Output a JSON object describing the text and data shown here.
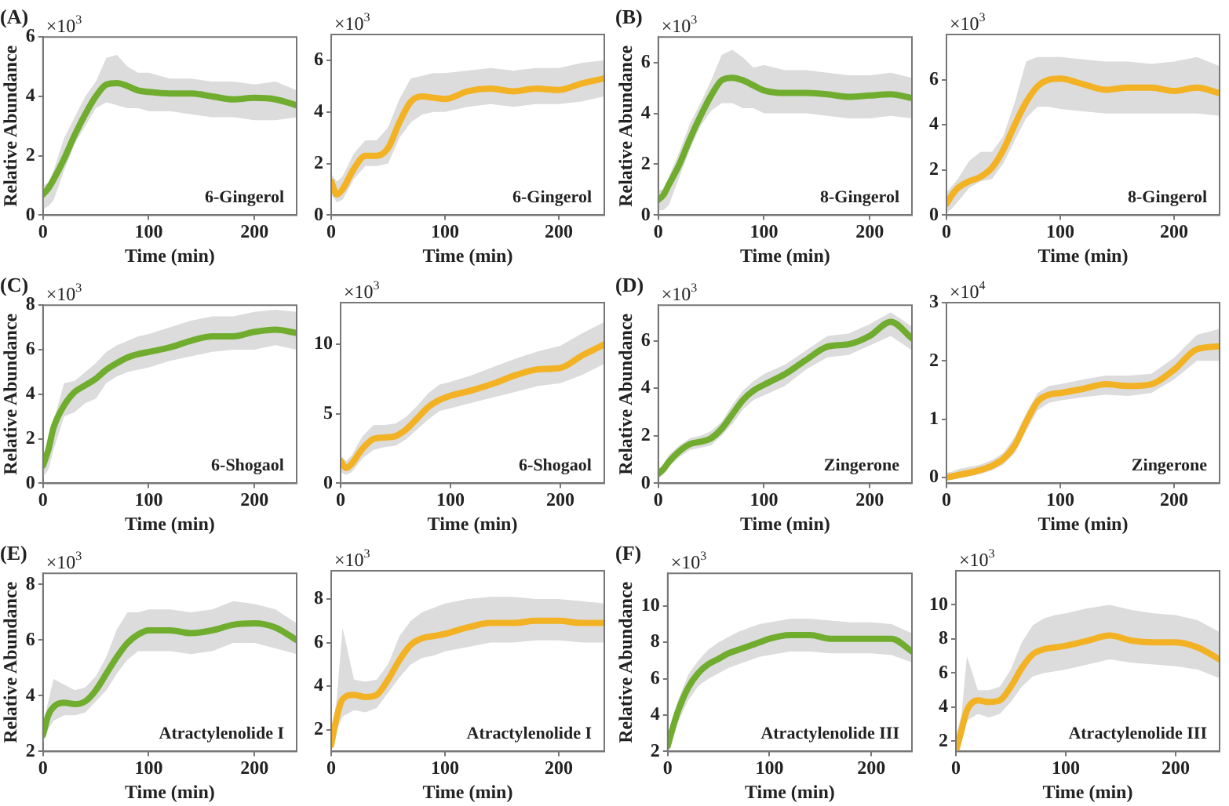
{
  "chart_data": [
    {
      "type": "line",
      "title": "(A)",
      "ylabel": "Relative Abundance",
      "xlabel": "Time (min)",
      "annotations": [
        "×10$^{3}$",
        "6-Gingerol"
      ],
      "x": [
        0,
        5,
        10,
        20,
        30,
        40,
        50,
        60,
        70,
        80,
        90,
        100,
        120,
        140,
        160,
        180,
        200,
        220,
        240
      ],
      "xlim": [
        0,
        240
      ],
      "xticks": [
        0,
        100,
        200
      ],
      "ylim": [
        0,
        6
      ],
      "yticks": [
        0,
        2,
        4,
        6
      ],
      "series": [
        {
          "color": "#70ad2f",
          "values": [
            0.7,
            0.9,
            1.2,
            1.9,
            2.7,
            3.4,
            4.0,
            4.4,
            4.45,
            4.35,
            4.2,
            4.15,
            4.1,
            4.1,
            4.0,
            3.9,
            3.95,
            3.9,
            3.7
          ],
          "lower": [
            0.2,
            0.3,
            0.5,
            1.5,
            2.4,
            3.0,
            3.6,
            3.8,
            3.7,
            3.6,
            3.6,
            3.5,
            3.5,
            3.4,
            3.3,
            3.3,
            3.2,
            3.2,
            3.3
          ],
          "upper": [
            1.0,
            1.1,
            1.5,
            2.6,
            3.3,
            4.0,
            4.5,
            5.3,
            5.4,
            5.0,
            4.8,
            4.8,
            4.6,
            4.6,
            4.5,
            4.5,
            4.4,
            4.5,
            4.2
          ]
        }
      ]
    },
    {
      "type": "line",
      "xlabel": "Time (min)",
      "annotations": [
        "×10$^{3}$",
        "6-Gingerol"
      ],
      "x": [
        0,
        5,
        10,
        20,
        30,
        40,
        50,
        60,
        70,
        80,
        90,
        100,
        120,
        140,
        160,
        180,
        200,
        220,
        240
      ],
      "xlim": [
        0,
        240
      ],
      "xticks": [
        0,
        100,
        200
      ],
      "ylim": [
        0,
        7
      ],
      "yticks": [
        0,
        2,
        4,
        6
      ],
      "series": [
        {
          "color": "#f2b224",
          "values": [
            1.3,
            0.8,
            1.0,
            1.8,
            2.3,
            2.3,
            2.6,
            3.6,
            4.4,
            4.6,
            4.55,
            4.5,
            4.8,
            4.9,
            4.8,
            4.9,
            4.85,
            5.1,
            5.3
          ],
          "lower": [
            0.8,
            0.5,
            0.6,
            1.4,
            1.9,
            1.9,
            2.0,
            3.0,
            3.6,
            3.9,
            4.0,
            4.0,
            4.2,
            4.3,
            4.2,
            4.3,
            4.3,
            4.4,
            4.6
          ],
          "upper": [
            1.6,
            1.3,
            1.5,
            2.4,
            2.9,
            2.9,
            3.4,
            4.5,
            5.3,
            5.4,
            5.5,
            5.5,
            5.6,
            5.7,
            5.6,
            5.7,
            5.7,
            5.9,
            6.0
          ]
        }
      ]
    },
    {
      "type": "line",
      "title": "(B)",
      "ylabel": "Relative Abundance",
      "xlabel": "Time (min)",
      "annotations": [
        "×10$^{3}$",
        "8-Gingerol"
      ],
      "x": [
        0,
        5,
        10,
        20,
        30,
        40,
        50,
        60,
        70,
        80,
        90,
        100,
        120,
        140,
        160,
        180,
        200,
        220,
        240
      ],
      "xlim": [
        0,
        240
      ],
      "xticks": [
        0,
        100,
        200
      ],
      "ylim": [
        0,
        7
      ],
      "yticks": [
        0,
        2,
        4,
        6
      ],
      "series": [
        {
          "color": "#70ad2f",
          "values": [
            0.6,
            0.8,
            1.2,
            2.0,
            3.0,
            3.9,
            4.7,
            5.3,
            5.4,
            5.3,
            5.1,
            4.9,
            4.8,
            4.8,
            4.75,
            4.65,
            4.7,
            4.75,
            4.6
          ],
          "lower": [
            0.2,
            0.2,
            0.4,
            1.5,
            2.6,
            3.5,
            4.1,
            4.4,
            4.4,
            4.2,
            4.2,
            4.0,
            4.0,
            4.0,
            3.9,
            3.8,
            3.8,
            3.9,
            3.8
          ],
          "upper": [
            1.0,
            1.0,
            1.5,
            2.5,
            3.6,
            4.4,
            5.3,
            6.3,
            6.5,
            6.2,
            5.8,
            5.9,
            5.7,
            5.7,
            5.6,
            5.5,
            5.5,
            5.6,
            5.4
          ]
        }
      ]
    },
    {
      "type": "line",
      "xlabel": "Time (min)",
      "annotations": [
        "×10$^{3}$",
        "8-Gingerol"
      ],
      "x": [
        0,
        5,
        10,
        20,
        30,
        40,
        50,
        60,
        70,
        80,
        90,
        100,
        120,
        140,
        160,
        180,
        200,
        220,
        240
      ],
      "xlim": [
        0,
        240
      ],
      "xticks": [
        0,
        100,
        200
      ],
      "ylim": [
        0,
        8
      ],
      "yticks": [
        0,
        2,
        4,
        6
      ],
      "series": [
        {
          "color": "#f2b224",
          "values": [
            0.5,
            0.9,
            1.2,
            1.5,
            1.7,
            2.1,
            2.9,
            4.0,
            5.0,
            5.7,
            6.0,
            6.05,
            5.8,
            5.55,
            5.65,
            5.65,
            5.5,
            5.65,
            5.4
          ],
          "lower": [
            0.1,
            0.3,
            0.6,
            1.2,
            1.5,
            1.6,
            2.3,
            3.3,
            4.3,
            4.8,
            4.8,
            4.7,
            4.6,
            4.5,
            4.5,
            4.5,
            4.5,
            4.5,
            4.4
          ],
          "upper": [
            1.0,
            1.3,
            1.6,
            2.4,
            2.8,
            2.8,
            3.5,
            5.0,
            6.8,
            7.0,
            7.0,
            7.0,
            6.9,
            6.8,
            6.8,
            6.7,
            6.8,
            7.0,
            6.6
          ]
        }
      ]
    },
    {
      "type": "line",
      "title": "(C)",
      "ylabel": "Relative Abundance",
      "xlabel": "Time (min)",
      "annotations": [
        "×10$^{3}$",
        "6-Shogaol"
      ],
      "x": [
        0,
        5,
        10,
        20,
        30,
        40,
        50,
        60,
        70,
        80,
        90,
        100,
        120,
        140,
        160,
        180,
        200,
        220,
        240
      ],
      "xlim": [
        0,
        240
      ],
      "xticks": [
        0,
        100,
        200
      ],
      "ylim": [
        0,
        8
      ],
      "yticks": [
        0,
        2,
        4,
        6,
        8
      ],
      "series": [
        {
          "color": "#70ad2f",
          "values": [
            0.8,
            1.5,
            2.5,
            3.5,
            4.1,
            4.4,
            4.7,
            5.1,
            5.4,
            5.65,
            5.8,
            5.9,
            6.1,
            6.4,
            6.6,
            6.6,
            6.8,
            6.9,
            6.75
          ],
          "lower": [
            0.3,
            0.6,
            1.5,
            3.0,
            3.2,
            3.6,
            3.8,
            4.5,
            4.8,
            5.0,
            5.1,
            5.2,
            5.5,
            5.7,
            5.9,
            6.0,
            6.0,
            6.2,
            6.0
          ],
          "upper": [
            1.2,
            1.6,
            2.8,
            4.5,
            4.6,
            5.0,
            5.4,
            5.9,
            6.2,
            6.4,
            6.6,
            6.7,
            7.0,
            7.3,
            7.5,
            7.5,
            7.7,
            7.8,
            7.7
          ]
        }
      ]
    },
    {
      "type": "line",
      "xlabel": "Time (min)",
      "annotations": [
        "×10$^{3}$",
        "6-Shogaol"
      ],
      "x": [
        0,
        5,
        10,
        20,
        30,
        40,
        50,
        60,
        70,
        80,
        90,
        100,
        120,
        140,
        160,
        180,
        200,
        220,
        240
      ],
      "xlim": [
        0,
        240
      ],
      "xticks": [
        0,
        100,
        200
      ],
      "ylim": [
        0,
        13
      ],
      "yticks": [
        0,
        5,
        10
      ],
      "series": [
        {
          "color": "#f2b224",
          "values": [
            1.6,
            1.1,
            1.4,
            2.5,
            3.2,
            3.3,
            3.4,
            3.9,
            4.7,
            5.5,
            6.0,
            6.3,
            6.7,
            7.2,
            7.8,
            8.2,
            8.3,
            9.2,
            10
          ],
          "lower": [
            0.8,
            0.6,
            0.8,
            1.8,
            2.4,
            2.6,
            2.7,
            3.2,
            3.9,
            4.6,
            5.2,
            5.4,
            5.8,
            6.2,
            6.6,
            7.0,
            7.2,
            7.8,
            8.6
          ],
          "upper": [
            2.0,
            1.6,
            2.0,
            3.4,
            4.2,
            4.2,
            4.3,
            4.8,
            5.6,
            6.5,
            7.1,
            7.3,
            7.8,
            8.4,
            9.0,
            9.5,
            9.9,
            10.8,
            11.6
          ]
        }
      ]
    },
    {
      "type": "line",
      "title": "(D)",
      "ylabel": "Relative Abundance",
      "xlabel": "Time (min)",
      "annotations": [
        "×10$^{3}$",
        "Zingerone"
      ],
      "x": [
        0,
        5,
        10,
        20,
        30,
        40,
        50,
        60,
        70,
        80,
        90,
        100,
        120,
        140,
        160,
        180,
        200,
        220,
        240
      ],
      "xlim": [
        0,
        240
      ],
      "xticks": [
        0,
        100,
        200
      ],
      "ylim": [
        0,
        7.5
      ],
      "yticks": [
        0,
        2,
        4,
        6
      ],
      "series": [
        {
          "color": "#70ad2f",
          "values": [
            0.4,
            0.6,
            0.9,
            1.35,
            1.65,
            1.75,
            1.9,
            2.3,
            2.9,
            3.5,
            3.9,
            4.15,
            4.6,
            5.2,
            5.75,
            5.85,
            6.2,
            6.8,
            6.1
          ],
          "lower": [
            0.2,
            0.4,
            0.7,
            1.1,
            1.4,
            1.5,
            1.6,
            2.0,
            2.5,
            3.1,
            3.5,
            3.7,
            4.1,
            4.8,
            5.3,
            5.4,
            5.8,
            6.2,
            5.6
          ],
          "upper": [
            0.6,
            0.8,
            1.2,
            1.6,
            1.9,
            2.0,
            2.2,
            2.6,
            3.3,
            3.9,
            4.3,
            4.6,
            5.0,
            5.6,
            6.2,
            6.3,
            6.7,
            7.2,
            6.6
          ]
        }
      ]
    },
    {
      "type": "line",
      "xlabel": "Time (min)",
      "annotations": [
        "×10$^{4}$",
        "Zingerone"
      ],
      "x": [
        0,
        5,
        10,
        20,
        30,
        40,
        50,
        60,
        70,
        80,
        90,
        100,
        120,
        140,
        160,
        180,
        200,
        220,
        240
      ],
      "xlim": [
        0,
        240
      ],
      "xticks": [
        0,
        100,
        200
      ],
      "ylim": [
        -0.1,
        3
      ],
      "yticks": [
        0,
        1,
        2,
        3
      ],
      "series": [
        {
          "color": "#f2b224",
          "values": [
            0.0,
            0.02,
            0.04,
            0.08,
            0.13,
            0.2,
            0.32,
            0.55,
            0.95,
            1.3,
            1.42,
            1.45,
            1.52,
            1.6,
            1.57,
            1.6,
            1.85,
            2.2,
            2.25
          ],
          "lower": [
            -0.05,
            -0.04,
            -0.02,
            0.02,
            0.06,
            0.12,
            0.22,
            0.42,
            0.8,
            1.15,
            1.28,
            1.32,
            1.38,
            1.42,
            1.4,
            1.45,
            1.68,
            2.0,
            2.0
          ],
          "upper": [
            0.08,
            0.1,
            0.14,
            0.18,
            0.22,
            0.3,
            0.42,
            0.7,
            1.1,
            1.45,
            1.57,
            1.6,
            1.68,
            1.75,
            1.75,
            1.78,
            2.05,
            2.45,
            2.55
          ]
        }
      ]
    },
    {
      "type": "line",
      "title": "(E)",
      "ylabel": "Relative Abundance",
      "xlabel": "Time (min)",
      "annotations": [
        "×10$^{3}$",
        "Atractylenolide I"
      ],
      "x": [
        0,
        5,
        10,
        20,
        30,
        40,
        50,
        60,
        70,
        80,
        90,
        100,
        120,
        140,
        160,
        180,
        200,
        220,
        240
      ],
      "xlim": [
        0,
        240
      ],
      "xticks": [
        0,
        100,
        200
      ],
      "ylim": [
        2,
        8.4
      ],
      "yticks": [
        2,
        4,
        6,
        8
      ],
      "series": [
        {
          "color": "#70ad2f",
          "values": [
            2.6,
            3.3,
            3.6,
            3.75,
            3.7,
            3.8,
            4.2,
            4.8,
            5.4,
            5.9,
            6.2,
            6.35,
            6.35,
            6.25,
            6.35,
            6.55,
            6.6,
            6.45,
            6.0
          ],
          "lower": [
            2.3,
            2.8,
            3.1,
            3.3,
            3.3,
            3.4,
            3.8,
            4.2,
            4.8,
            5.3,
            5.6,
            5.6,
            5.6,
            5.5,
            5.6,
            5.9,
            5.9,
            5.7,
            5.5
          ],
          "upper": [
            3.0,
            3.8,
            4.6,
            4.4,
            4.2,
            4.3,
            4.7,
            5.4,
            6.4,
            7.0,
            7.0,
            7.1,
            7.1,
            7.0,
            7.1,
            7.4,
            7.3,
            7.1,
            6.6
          ]
        }
      ]
    },
    {
      "type": "line",
      "xlabel": "Time (min)",
      "annotations": [
        "×10$^{3}$",
        "Atractylenolide I"
      ],
      "x": [
        0,
        5,
        10,
        20,
        30,
        40,
        50,
        60,
        70,
        80,
        90,
        100,
        120,
        140,
        160,
        180,
        200,
        220,
        240
      ],
      "xlim": [
        0,
        240
      ],
      "xticks": [
        0,
        100,
        200
      ],
      "ylim": [
        1,
        9.3
      ],
      "yticks": [
        2,
        4,
        6,
        8
      ],
      "series": [
        {
          "color": "#f2b224",
          "values": [
            1.3,
            2.6,
            3.4,
            3.6,
            3.5,
            3.6,
            4.3,
            5.2,
            5.9,
            6.2,
            6.3,
            6.4,
            6.7,
            6.9,
            6.9,
            7.0,
            7.0,
            6.9,
            6.9
          ],
          "lower": [
            1.1,
            2.0,
            2.6,
            2.9,
            2.8,
            3.0,
            3.7,
            4.4,
            5.0,
            5.3,
            5.4,
            5.6,
            5.8,
            6.0,
            6.0,
            6.1,
            6.1,
            6.0,
            6.0
          ],
          "upper": [
            1.6,
            3.5,
            6.7,
            4.3,
            4.2,
            4.3,
            5.0,
            6.3,
            7.0,
            7.4,
            7.6,
            7.8,
            8.0,
            8.1,
            8.1,
            8.0,
            8.0,
            7.9,
            7.8
          ]
        }
      ]
    },
    {
      "type": "line",
      "title": "(F)",
      "ylabel": "Relative Abundance",
      "xlabel": "Time (min)",
      "annotations": [
        "×10$^{3}$",
        "Atractylenolide III"
      ],
      "x": [
        0,
        5,
        10,
        20,
        30,
        40,
        50,
        60,
        70,
        80,
        90,
        100,
        120,
        140,
        160,
        180,
        200,
        220,
        240
      ],
      "xlim": [
        0,
        240
      ],
      "xticks": [
        0,
        100,
        200
      ],
      "ylim": [
        2,
        11.8
      ],
      "yticks": [
        2,
        4,
        6,
        8,
        10
      ],
      "series": [
        {
          "color": "#70ad2f",
          "values": [
            2.3,
            3.3,
            4.2,
            5.5,
            6.3,
            6.8,
            7.1,
            7.4,
            7.6,
            7.8,
            8.0,
            8.2,
            8.4,
            8.4,
            8.2,
            8.2,
            8.2,
            8.2,
            7.5
          ],
          "lower": [
            2.0,
            2.8,
            3.6,
            4.8,
            5.6,
            6.0,
            6.3,
            6.6,
            6.8,
            7.0,
            7.2,
            7.3,
            7.5,
            7.5,
            7.4,
            7.4,
            7.4,
            7.3,
            6.9
          ],
          "upper": [
            2.8,
            3.8,
            4.8,
            6.2,
            7.0,
            7.6,
            8.0,
            8.3,
            8.6,
            8.8,
            9.0,
            9.1,
            9.3,
            9.3,
            9.2,
            9.1,
            9.1,
            9.0,
            8.5
          ]
        }
      ]
    },
    {
      "type": "line",
      "xlabel": "Time (min)",
      "annotations": [
        "×10$^{3}$",
        "Atractylenolide III"
      ],
      "x": [
        0,
        5,
        10,
        20,
        30,
        40,
        50,
        60,
        70,
        80,
        90,
        100,
        120,
        140,
        160,
        180,
        200,
        220,
        240
      ],
      "xlim": [
        0,
        240
      ],
      "xticks": [
        0,
        100,
        200
      ],
      "ylim": [
        1.4,
        12
      ],
      "yticks": [
        2,
        4,
        6,
        8,
        10
      ],
      "series": [
        {
          "color": "#f2b224",
          "values": [
            1.4,
            2.6,
            3.8,
            4.4,
            4.3,
            4.4,
            5.2,
            6.3,
            7.1,
            7.4,
            7.5,
            7.6,
            7.9,
            8.2,
            7.9,
            7.8,
            7.8,
            7.5,
            6.8
          ],
          "lower": [
            1.4,
            2.0,
            3.2,
            3.6,
            3.4,
            3.6,
            4.3,
            5.2,
            5.8,
            6.0,
            6.1,
            6.2,
            6.5,
            6.8,
            6.6,
            6.5,
            6.4,
            6.2,
            5.7
          ],
          "upper": [
            2.4,
            3.5,
            7.0,
            5.0,
            5.0,
            5.2,
            6.2,
            7.8,
            8.8,
            9.2,
            9.4,
            9.5,
            9.8,
            10.0,
            9.7,
            9.5,
            9.4,
            9.1,
            8.4
          ]
        }
      ]
    }
  ]
}
